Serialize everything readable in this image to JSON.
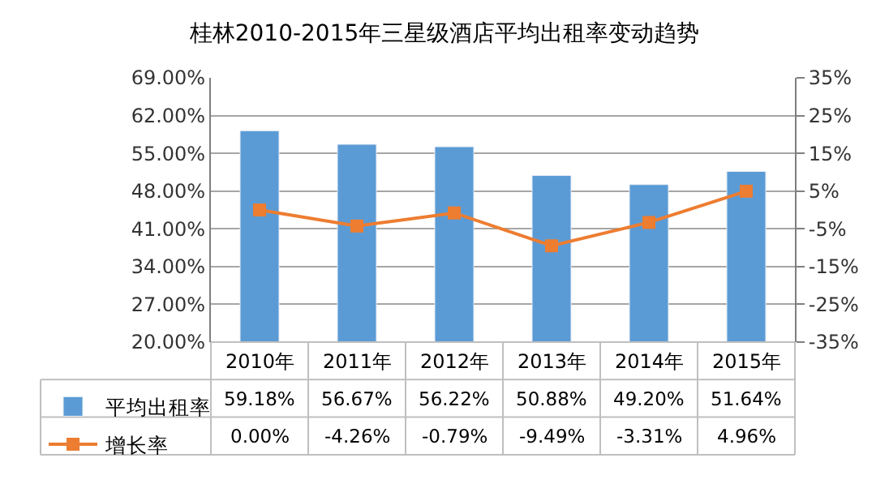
{
  "chart_data": {
    "type": "bar",
    "title": "桂林2010-2015年三星级酒店平均出租率变动趋势",
    "categories": [
      "2010年",
      "2011年",
      "2012年",
      "2013年",
      "2014年",
      "2015年"
    ],
    "series": [
      {
        "name": "平均出租率",
        "color": "#5b9bd5",
        "values": [
          59.18,
          56.67,
          56.22,
          50.88,
          49.2,
          51.64
        ],
        "value_labels": [
          "59.18%",
          "56.67%",
          "56.22%",
          "50.88%",
          "49.20%",
          "51.64%"
        ]
      },
      {
        "name": "增长率",
        "type": "line",
        "axis": "y2",
        "color": "#ed7d31",
        "marker": "square",
        "values": [
          0.0,
          -4.26,
          -0.79,
          -9.49,
          -3.31,
          4.96
        ],
        "value_labels": [
          "0.00%",
          "-4.26%",
          "-0.79%",
          "-9.49%",
          "-3.31%",
          "4.96%"
        ]
      }
    ],
    "ylim": [
      20,
      69
    ],
    "yticks": [
      {
        "value": 20,
        "label": "20.00%"
      },
      {
        "value": 27,
        "label": "27.00%"
      },
      {
        "value": 34,
        "label": "34.00%"
      },
      {
        "value": 41,
        "label": "41.00%"
      },
      {
        "value": 48,
        "label": "48.00%"
      },
      {
        "value": 55,
        "label": "55.00%"
      },
      {
        "value": 62,
        "label": "62.00%"
      },
      {
        "value": 69,
        "label": "69.00%"
      }
    ],
    "y2lim": [
      -35,
      35
    ],
    "y2ticks": [
      {
        "value": -35,
        "label": "-35%"
      },
      {
        "value": -25,
        "label": "-25%"
      },
      {
        "value": -15,
        "label": "-15%"
      },
      {
        "value": -5,
        "label": "-5%"
      },
      {
        "value": 5,
        "label": "5%"
      },
      {
        "value": 15,
        "label": "15%"
      },
      {
        "value": 25,
        "label": "25%"
      },
      {
        "value": 35,
        "label": "35%"
      }
    ],
    "grid": "y",
    "legend": "bottom left"
  }
}
